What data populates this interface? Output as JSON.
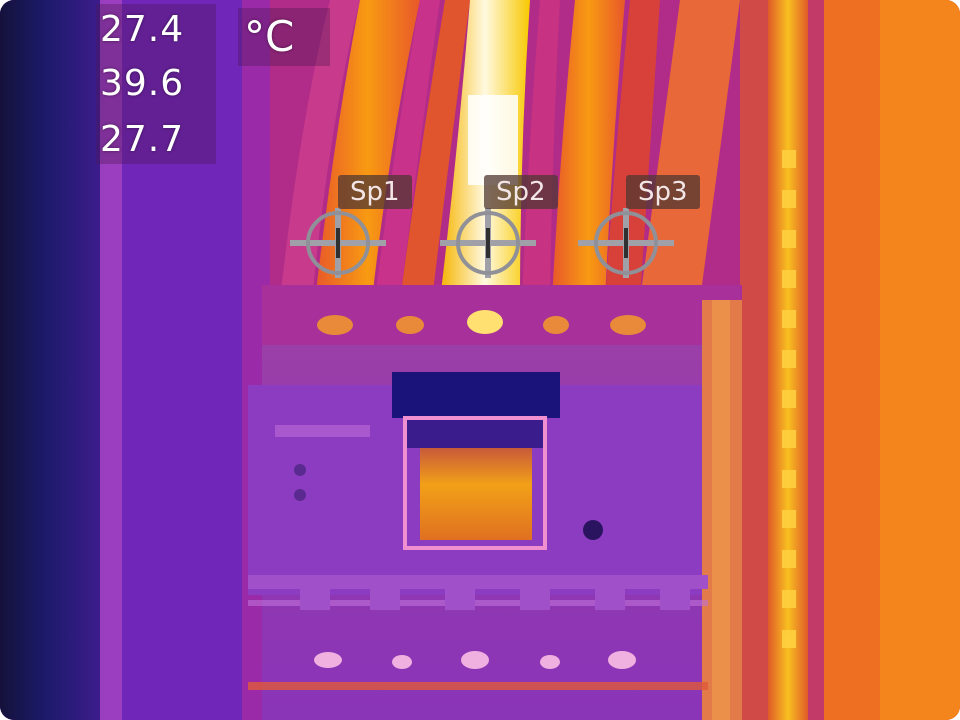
{
  "image": {
    "kind": "thermal-camera-frame",
    "palette": "ironbow"
  },
  "readouts": {
    "values": [
      "27.4",
      "39.6",
      "27.7"
    ],
    "unit": "°C"
  },
  "spots": [
    {
      "label": "Sp1",
      "icon": "crosshair-icon"
    },
    {
      "label": "Sp2",
      "icon": "crosshair-icon"
    },
    {
      "label": "Sp3",
      "icon": "crosshair-icon"
    }
  ]
}
